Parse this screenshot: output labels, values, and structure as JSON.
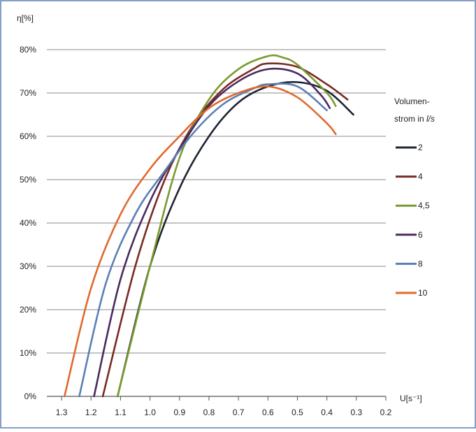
{
  "chart_data": {
    "type": "line",
    "ylabel": "η[%]",
    "xlabel": "U[s⁻¹]",
    "xlim": [
      1.35,
      0.2
    ],
    "ylim": [
      0,
      80
    ],
    "x_reversed": true,
    "x_ticks": [
      "1.3",
      "1.2",
      "1.1",
      "1.0",
      "0.9",
      "0.8",
      "0.7",
      "0.6",
      "0.5",
      "0.4",
      "0.3",
      "0.2"
    ],
    "x_tick_values": [
      1.3,
      1.2,
      1.1,
      1.0,
      0.9,
      0.8,
      0.7,
      0.6,
      0.5,
      0.4,
      0.3,
      0.2
    ],
    "y_ticks": [
      "0%",
      "10%",
      "20%",
      "30%",
      "40%",
      "50%",
      "60%",
      "70%",
      "80%"
    ],
    "y_tick_values": [
      0,
      10,
      20,
      30,
      40,
      50,
      60,
      70,
      80
    ],
    "grid": "horizontal",
    "legend": {
      "title_line1": "Volumen-",
      "title_line2": "strom in ",
      "title_unit": "l/s",
      "placement": "right"
    },
    "series": [
      {
        "name": "2",
        "color": "#1f2433",
        "points": [
          [
            1.11,
            0
          ],
          [
            1.0,
            30
          ],
          [
            0.9,
            48
          ],
          [
            0.8,
            60
          ],
          [
            0.7,
            67.8
          ],
          [
            0.6,
            71.5
          ],
          [
            0.5,
            72.5
          ],
          [
            0.4,
            70.5
          ],
          [
            0.31,
            65
          ]
        ]
      },
      {
        "name": "4",
        "color": "#7a2a24",
        "points": [
          [
            1.16,
            0
          ],
          [
            1.05,
            30
          ],
          [
            0.95,
            50
          ],
          [
            0.85,
            63
          ],
          [
            0.75,
            71
          ],
          [
            0.65,
            75.5
          ],
          [
            0.6,
            76.8
          ],
          [
            0.5,
            76
          ],
          [
            0.4,
            72
          ],
          [
            0.33,
            68.5
          ]
        ]
      },
      {
        "name": "4,5",
        "color": "#7a9a2e",
        "points": [
          [
            1.11,
            0
          ],
          [
            1.0,
            30
          ],
          [
            0.9,
            55
          ],
          [
            0.8,
            68.5
          ],
          [
            0.7,
            75.5
          ],
          [
            0.6,
            78.5
          ],
          [
            0.55,
            78.2
          ],
          [
            0.5,
            76.5
          ],
          [
            0.4,
            70
          ],
          [
            0.37,
            67
          ]
        ]
      },
      {
        "name": "6",
        "color": "#4a2a5e",
        "points": [
          [
            1.19,
            0
          ],
          [
            1.1,
            27
          ],
          [
            1.0,
            45
          ],
          [
            0.9,
            57
          ],
          [
            0.8,
            67
          ],
          [
            0.7,
            72.7
          ],
          [
            0.6,
            75.5
          ],
          [
            0.5,
            74.5
          ],
          [
            0.42,
            69.5
          ],
          [
            0.39,
            66.5
          ]
        ]
      },
      {
        "name": "8",
        "color": "#5b7fb5",
        "points": [
          [
            1.24,
            0
          ],
          [
            1.15,
            26
          ],
          [
            1.05,
            42
          ],
          [
            0.95,
            52
          ],
          [
            0.85,
            61
          ],
          [
            0.75,
            67.5
          ],
          [
            0.65,
            71
          ],
          [
            0.6,
            72
          ],
          [
            0.5,
            71.5
          ],
          [
            0.4,
            66
          ]
        ]
      },
      {
        "name": "10",
        "color": "#e0692e",
        "points": [
          [
            1.29,
            0
          ],
          [
            1.2,
            25
          ],
          [
            1.1,
            42
          ],
          [
            1.0,
            52.5
          ],
          [
            0.9,
            60
          ],
          [
            0.8,
            66.5
          ],
          [
            0.7,
            70
          ],
          [
            0.6,
            71.5
          ],
          [
            0.5,
            69
          ],
          [
            0.4,
            63
          ],
          [
            0.37,
            60.5
          ]
        ]
      }
    ]
  }
}
